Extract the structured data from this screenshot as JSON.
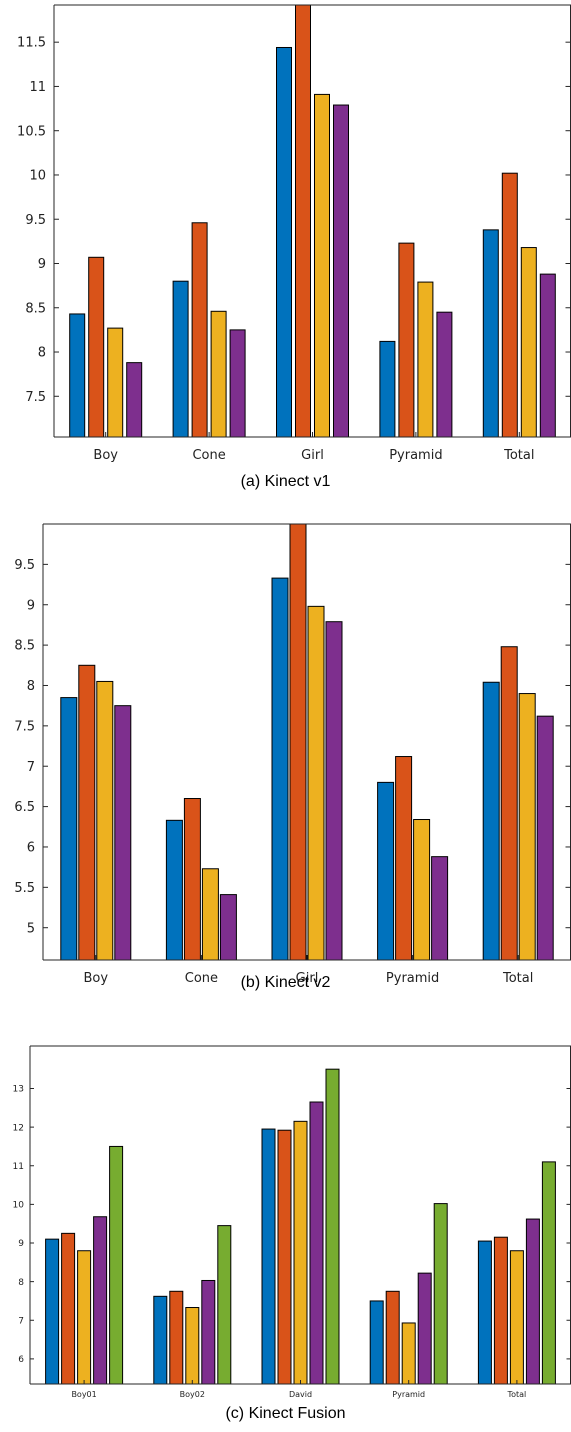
{
  "colors": {
    "series": [
      "#0072BD",
      "#D95319",
      "#EDB120",
      "#7E2F8E",
      "#77AC30"
    ],
    "axis": "#262626",
    "bar_edge": "#000000"
  },
  "chart_data": [
    {
      "type": "bar",
      "caption": "(a) Kinect v1",
      "categories": [
        "Boy",
        "Cone",
        "Girl",
        "Pyramid",
        "Total"
      ],
      "series": [
        {
          "values": [
            8.43,
            8.8,
            11.44,
            8.12,
            9.38
          ]
        },
        {
          "values": [
            9.07,
            9.46,
            11.92,
            9.23,
            10.02
          ]
        },
        {
          "values": [
            8.27,
            8.46,
            10.91,
            8.79,
            9.18
          ]
        },
        {
          "values": [
            7.88,
            8.25,
            10.79,
            8.45,
            8.88
          ]
        }
      ],
      "yticks": [
        "7.5",
        "8",
        "8.5",
        "9",
        "9.5",
        "10",
        "10.5",
        "11",
        "11.5"
      ],
      "ylim": [
        7.04,
        11.92
      ],
      "grid": false,
      "legend": "none"
    },
    {
      "type": "bar",
      "caption": "(b) Kinect v2",
      "categories": [
        "Boy",
        "Cone",
        "Girl",
        "Pyramid",
        "Total"
      ],
      "series": [
        {
          "values": [
            7.85,
            6.33,
            9.33,
            6.8,
            8.04
          ]
        },
        {
          "values": [
            8.25,
            6.6,
            10.0,
            7.12,
            8.48
          ]
        },
        {
          "values": [
            8.05,
            5.73,
            8.98,
            6.34,
            7.9
          ]
        },
        {
          "values": [
            7.75,
            5.41,
            8.79,
            5.88,
            7.62
          ]
        }
      ],
      "yticks": [
        "5",
        "5.5",
        "6",
        "6.5",
        "7",
        "7.5",
        "8",
        "8.5",
        "9",
        "9.5"
      ],
      "ylim": [
        4.6,
        10.0
      ],
      "grid": false,
      "legend": "none"
    },
    {
      "type": "bar",
      "caption": "(c) Kinect Fusion",
      "categories": [
        "Boy01",
        "Boy02",
        "David",
        "Pyramid",
        "Total"
      ],
      "series": [
        {
          "values": [
            9.1,
            7.62,
            11.95,
            7.5,
            9.05
          ]
        },
        {
          "values": [
            9.25,
            7.75,
            11.92,
            7.75,
            9.15
          ]
        },
        {
          "values": [
            8.8,
            7.33,
            12.15,
            6.93,
            8.8
          ]
        },
        {
          "values": [
            9.68,
            8.03,
            12.65,
            8.22,
            9.62
          ]
        },
        {
          "values": [
            11.5,
            9.45,
            13.5,
            10.02,
            11.1
          ]
        }
      ],
      "yticks": [
        "6",
        "7",
        "8",
        "9",
        "10",
        "11",
        "12",
        "13"
      ],
      "ylim": [
        5.35,
        14.1
      ],
      "grid": false,
      "legend": "none"
    }
  ]
}
